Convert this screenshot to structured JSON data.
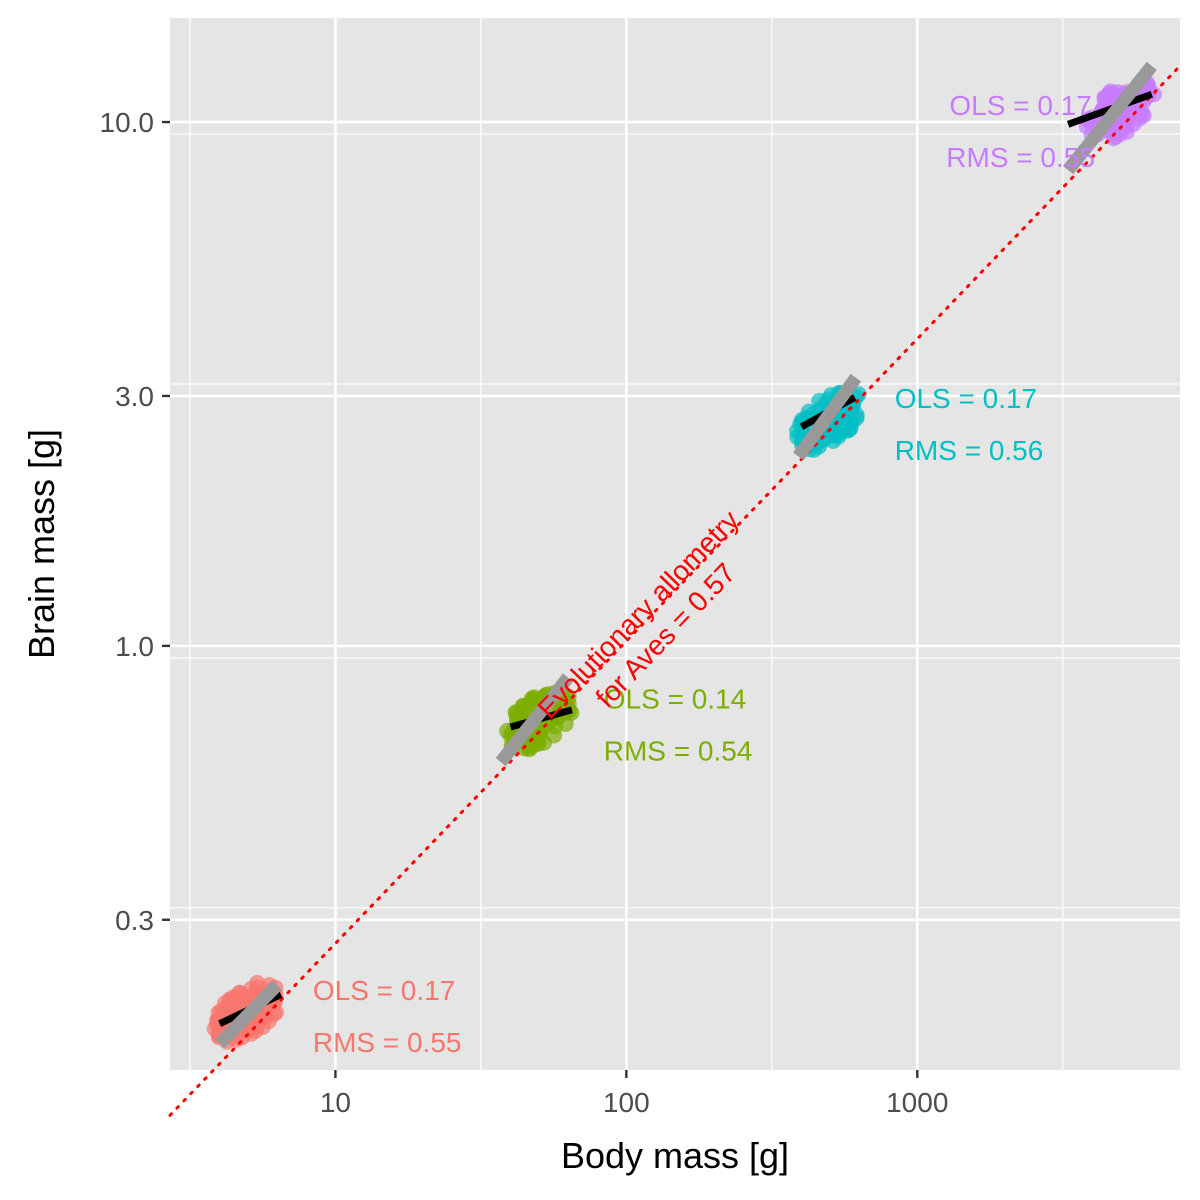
{
  "chart_data": {
    "type": "scatter",
    "xlabel": "Body mass [g]",
    "ylabel": "Brain mass [g]",
    "x_scale": "log",
    "y_scale": "log",
    "xlim": [
      2.7,
      8000
    ],
    "ylim": [
      0.155,
      15.8
    ],
    "x_ticks": [
      {
        "value": 10,
        "label": "10"
      },
      {
        "value": 100,
        "label": "100"
      },
      {
        "value": 1000,
        "label": "1000"
      }
    ],
    "y_ticks": [
      {
        "value": 0.3,
        "label": "0.3"
      },
      {
        "value": 1.0,
        "label": "1.0"
      },
      {
        "value": 3.0,
        "label": "3.0"
      },
      {
        "value": 10.0,
        "label": "10.0"
      }
    ],
    "grid": true,
    "legend": "none",
    "background": "#e5e5e5",
    "reference_line": {
      "label_line1": "Evolutionary allometry",
      "label_line2": "for Aves = 0.57",
      "slope": 0.57,
      "color": "#ff0000",
      "style": "dotted",
      "points": [
        [
          2.7,
          0.127
        ],
        [
          8000,
          12.8
        ]
      ]
    },
    "series": [
      {
        "color": "#f8766d",
        "center": [
          5,
          0.2
        ],
        "ols_slope": 0.17,
        "rms_slope": 0.55,
        "ols_label": "OLS = 0.17",
        "rms_label": "RMS = 0.55",
        "ols_line": [
          [
            4,
            0.19
          ],
          [
            6.5,
            0.216
          ]
        ],
        "rms_line": [
          [
            4,
            0.174
          ],
          [
            6.3,
            0.225
          ]
        ]
      },
      {
        "color": "#7cae00",
        "center": [
          50,
          0.72
        ],
        "ols_slope": 0.14,
        "rms_slope": 0.54,
        "ols_label": "OLS = 0.14",
        "rms_label": "RMS = 0.54",
        "ols_line": [
          [
            40,
            0.7
          ],
          [
            65,
            0.755
          ]
        ],
        "rms_line": [
          [
            37,
            0.6
          ],
          [
            63,
            0.87
          ]
        ]
      },
      {
        "color": "#00bfc4",
        "center": [
          500,
          2.7
        ],
        "ols_slope": 0.17,
        "rms_slope": 0.56,
        "ols_label": "OLS = 0.17",
        "rms_label": "RMS = 0.56",
        "ols_line": [
          [
            400,
            2.62
          ],
          [
            610,
            2.98
          ]
        ],
        "rms_line": [
          [
            390,
            2.3
          ],
          [
            615,
            3.25
          ]
        ]
      },
      {
        "color": "#c77cff",
        "center": [
          5000,
          10.5
        ],
        "ols_slope": 0.17,
        "rms_slope": 0.55,
        "ols_label": "OLS = 0.17",
        "rms_label": "RMS = 0.55",
        "ols_line": [
          [
            3300,
            9.9
          ],
          [
            6400,
            11.3
          ]
        ],
        "rms_line": [
          [
            3300,
            8.1
          ],
          [
            6400,
            12.8
          ]
        ]
      }
    ]
  }
}
